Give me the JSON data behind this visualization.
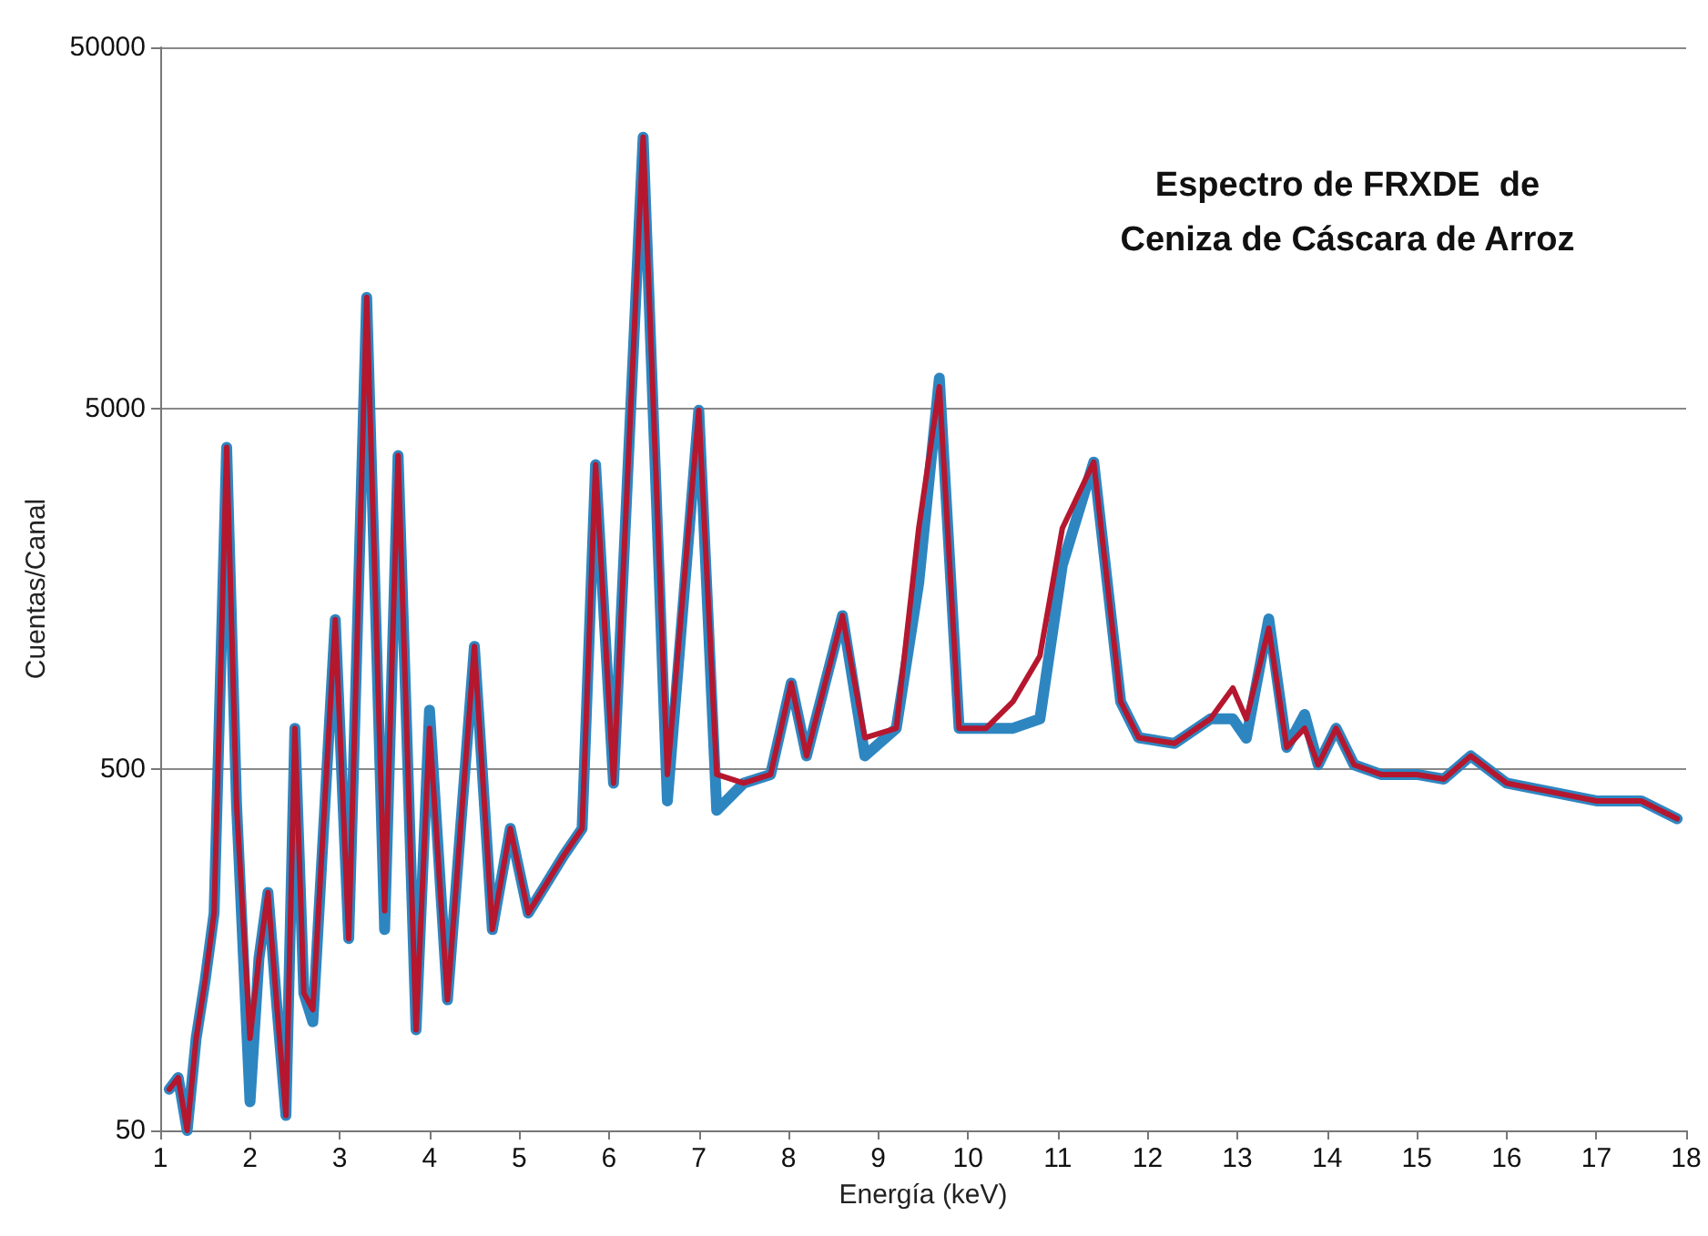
{
  "chart_data": {
    "type": "line",
    "title": "Espectro de FRXDE  de\nCeniza de Cáscara de Arroz",
    "xlabel": "Energía (keV)",
    "ylabel": "Cuentas/Canal",
    "log": "y",
    "grid": "y",
    "marker": "none",
    "line_style": "solid",
    "xlim": [
      1,
      18
    ],
    "xticks": [
      1,
      2,
      3,
      4,
      5,
      6,
      7,
      8,
      9,
      10,
      11,
      12,
      13,
      14,
      15,
      16,
      17,
      18
    ],
    "ylim": [
      50,
      50000
    ],
    "yticks": [
      50,
      500,
      5000,
      50000
    ],
    "x": [
      1.1,
      1.2,
      1.3,
      1.4,
      1.5,
      1.6,
      1.74,
      1.85,
      2.0,
      2.1,
      2.2,
      2.3,
      2.4,
      2.5,
      2.6,
      2.7,
      2.95,
      3.1,
      3.3,
      3.5,
      3.65,
      3.85,
      4.0,
      4.2,
      4.5,
      4.7,
      4.9,
      5.1,
      5.5,
      5.7,
      5.85,
      6.05,
      6.38,
      6.65,
      7.0,
      7.2,
      7.5,
      7.8,
      8.03,
      8.2,
      8.6,
      8.85,
      9.2,
      9.45,
      9.68,
      9.9,
      10.2,
      10.5,
      10.8,
      11.05,
      11.4,
      11.7,
      11.9,
      12.3,
      12.7,
      12.95,
      13.1,
      13.35,
      13.55,
      13.75,
      13.9,
      14.1,
      14.3,
      14.6,
      15,
      15.3,
      15.6,
      16,
      16.5,
      17,
      17.5,
      17.9
    ],
    "series": [
      {
        "color": "#2e86c1",
        "values": [
          65,
          70,
          50,
          90,
          130,
          200,
          3900,
          400,
          60,
          150,
          228,
          110,
          55,
          650,
          120,
          100,
          1300,
          170,
          10150,
          180,
          3700,
          95,
          730,
          115,
          1095,
          180,
          343,
          200,
          290,
          343,
          3490,
          458,
          28200,
          409,
          4940,
          385,
          458,
          484,
          867,
          545,
          1333,
          545,
          650,
          1640,
          6060,
          650,
          650,
          650,
          690,
          1840,
          3550,
          770,
          612,
          590,
          690,
          690,
          610,
          1305,
          575,
          710,
          515,
          650,
          515,
          484,
          484,
          470,
          545,
          458,
          433,
          409,
          409,
          365
        ]
      },
      {
        "color": "#b5172f",
        "values": [
          65,
          70,
          50,
          90,
          130,
          200,
          3900,
          400,
          90,
          150,
          228,
          110,
          55,
          650,
          120,
          108,
          1300,
          170,
          10150,
          203,
          3700,
          95,
          650,
          115,
          1095,
          180,
          343,
          200,
          290,
          343,
          3490,
          458,
          28200,
          484,
          4940,
          484,
          458,
          484,
          867,
          545,
          1333,
          612,
          650,
          2325,
          5740,
          650,
          650,
          770,
          1030,
          2325,
          3550,
          770,
          612,
          590,
          690,
          840,
          690,
          1230,
          575,
          650,
          515,
          650,
          515,
          484,
          484,
          470,
          545,
          458,
          433,
          409,
          409,
          365
        ]
      }
    ]
  }
}
